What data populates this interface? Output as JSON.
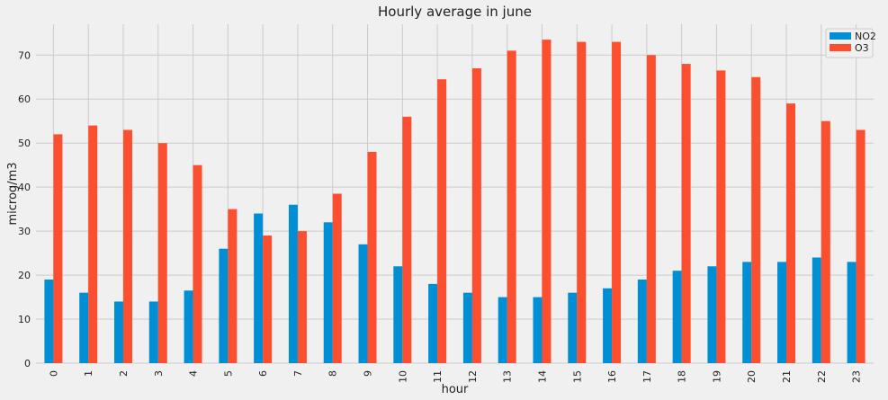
{
  "chart_data": {
    "type": "bar",
    "title": "Hourly average in june",
    "xlabel": "hour",
    "ylabel": "microg/m3",
    "ylim": [
      0,
      77
    ],
    "yticks": [
      0,
      10,
      20,
      30,
      40,
      50,
      60,
      70
    ],
    "grid": true,
    "legend_position": "top-right",
    "categories": [
      "0",
      "1",
      "2",
      "3",
      "4",
      "5",
      "6",
      "7",
      "8",
      "9",
      "10",
      "11",
      "12",
      "13",
      "14",
      "15",
      "16",
      "17",
      "18",
      "19",
      "20",
      "21",
      "22",
      "23"
    ],
    "series": [
      {
        "name": "NO2",
        "color": "#008fd5",
        "values": [
          19,
          16,
          14,
          14,
          16.5,
          26,
          34,
          36,
          32,
          27,
          22,
          18,
          16,
          15,
          15,
          16,
          17,
          19,
          21,
          22,
          23,
          23,
          24,
          23
        ]
      },
      {
        "name": "O3",
        "color": "#fc4f30",
        "values": [
          52,
          54,
          53,
          50,
          45,
          35,
          29,
          30,
          38.5,
          48,
          56,
          64.5,
          67,
          71,
          73.5,
          73,
          73,
          70,
          68,
          66.5,
          65,
          59,
          55,
          53
        ]
      }
    ]
  }
}
